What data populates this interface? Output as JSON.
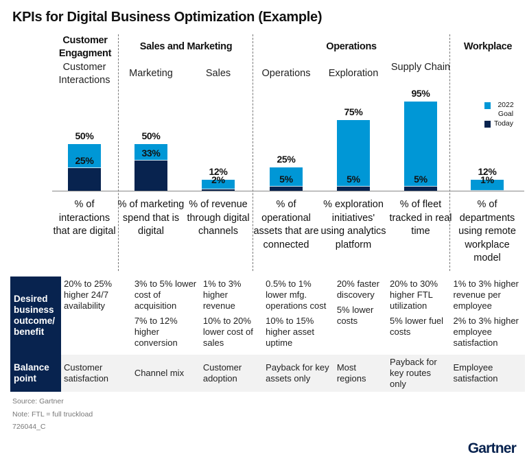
{
  "title": "KPIs for Digital Business Optimization (Example)",
  "groups": [
    {
      "label": "Customer Engagment"
    },
    {
      "label": "Sales and Marketing"
    },
    {
      "label": "Operations"
    },
    {
      "label": "Workplace"
    }
  ],
  "legend": {
    "goal": "2022 Goal",
    "today": "Today",
    "goal_color": "#0097d6",
    "today_color": "#08234f"
  },
  "chart_data": {
    "type": "bar",
    "categories": [
      "Customer Interactions",
      "Marketing",
      "Sales",
      "Operations",
      "Exploration",
      "Supply Chain",
      ""
    ],
    "series": [
      {
        "name": "2022 Goal",
        "values": [
          50,
          50,
          12,
          25,
          75,
          95,
          12
        ],
        "labels": [
          "50%",
          "50%",
          "12%",
          "25%",
          "75%",
          "95%",
          "12%"
        ]
      },
      {
        "name": "Today",
        "values": [
          25,
          33,
          2,
          5,
          5,
          5,
          1
        ],
        "labels": [
          "25%",
          "33%",
          "2%",
          "5%",
          "5%",
          "5%",
          "1%"
        ]
      }
    ],
    "ylim": [
      0,
      100
    ]
  },
  "columns": [
    {
      "sub": "Customer Interactions",
      "desc": "% of interactions that are digital"
    },
    {
      "sub": "Marketing",
      "desc": "% of marketing spend that is digital"
    },
    {
      "sub": "Sales",
      "desc": "% of revenue through digital channels"
    },
    {
      "sub": "Operations",
      "desc": "% of operational assets that are connected"
    },
    {
      "sub": "Exploration",
      "desc": "% exploration initiatives' using analytics platform"
    },
    {
      "sub": "Supply Chain",
      "desc": "% of fleet tracked in real time"
    },
    {
      "sub": "",
      "desc": "% of departments using remote workplace model"
    }
  ],
  "table": {
    "row1_header": "Desired business outcome/ benefit",
    "row2_header": "Balance point",
    "outcomes": [
      [
        "20% to 25% higher 24/7 availability"
      ],
      [
        "3% to 5% lower cost of acquisition",
        "7% to 12% higher conversion"
      ],
      [
        "1% to 3% higher revenue",
        "10% to 20% lower cost of sales"
      ],
      [
        "0.5% to 1% lower mfg. operations cost",
        "10% to 15% higher asset uptime"
      ],
      [
        "20% faster discovery",
        "5% lower costs"
      ],
      [
        "20% to 30% higher FTL utilization",
        "5% lower fuel costs"
      ],
      [
        "1% to 3% higher revenue per employee",
        "2% to 3% higher employee satisfaction"
      ]
    ],
    "balance": [
      "Customer satisfaction",
      "Channel mix",
      "Customer adoption",
      "Payback for key assets only",
      "Most regions",
      "Payback for key routes only",
      "Employee satisfaction"
    ]
  },
  "footer": {
    "source": "Source: Gartner",
    "note": "Note: FTL = full truckload",
    "code": "726044_C"
  },
  "logo": "Gartner"
}
